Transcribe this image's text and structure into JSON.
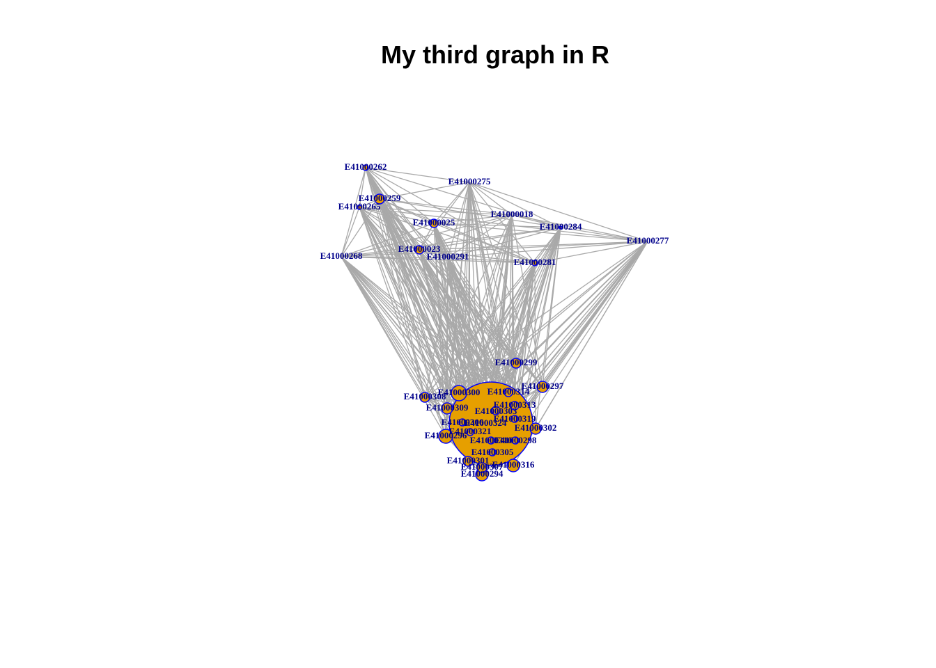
{
  "title": "My third graph in R",
  "colors": {
    "background": "#ffffff",
    "edge": "#a9a9a9",
    "node_fill": "#e69f00",
    "node_stroke": "#0000ff",
    "label": "#00008b"
  },
  "nodes": [
    {
      "id": "E41000262",
      "label": "E41000262"
    },
    {
      "id": "E41000275",
      "label": "E41000275"
    },
    {
      "id": "E41000259",
      "label": "E41000259"
    },
    {
      "id": "E41000265",
      "label": "E41000265"
    },
    {
      "id": "E41000018",
      "label": "E41000018"
    },
    {
      "id": "E41000025",
      "label": "E41000025"
    },
    {
      "id": "E41000284",
      "label": "E41000284"
    },
    {
      "id": "E41000277",
      "label": "E41000277"
    },
    {
      "id": "E41000023",
      "label": "E41000023"
    },
    {
      "id": "E41000268",
      "label": "E41000268"
    },
    {
      "id": "E41000291",
      "label": "E41000291"
    },
    {
      "id": "E41000281",
      "label": "E41000281"
    },
    {
      "id": "E41000299",
      "label": "E41000299"
    },
    {
      "id": "E41000297",
      "label": "E41000297"
    },
    {
      "id": "E41000300",
      "label": "E41000300"
    },
    {
      "id": "E41000314",
      "label": "E41000314"
    },
    {
      "id": "E41000308",
      "label": "E41000308"
    },
    {
      "id": "E41000313",
      "label": "E41000313"
    },
    {
      "id": "E41000309",
      "label": "E41000309"
    },
    {
      "id": "E41000303",
      "label": "E41000303"
    },
    {
      "id": "E41000319",
      "label": "E41000319"
    },
    {
      "id": "E41000306",
      "label": "E41000306"
    },
    {
      "id": "E41000324",
      "label": "E41000324"
    },
    {
      "id": "E41000302",
      "label": "E41000302"
    },
    {
      "id": "E41000321",
      "label": "E41000321"
    },
    {
      "id": "E41000296",
      "label": "E41000296"
    },
    {
      "id": "E41000310",
      "label": "E41000310"
    },
    {
      "id": "E41000298",
      "label": "E41000298"
    },
    {
      "id": "E41000305",
      "label": "E41000305"
    },
    {
      "id": "E41000301",
      "label": "E41000301"
    },
    {
      "id": "E41000307",
      "label": "E41000307"
    },
    {
      "id": "E41000316",
      "label": "E41000316"
    },
    {
      "id": "E41000294",
      "label": "E41000294"
    }
  ]
}
